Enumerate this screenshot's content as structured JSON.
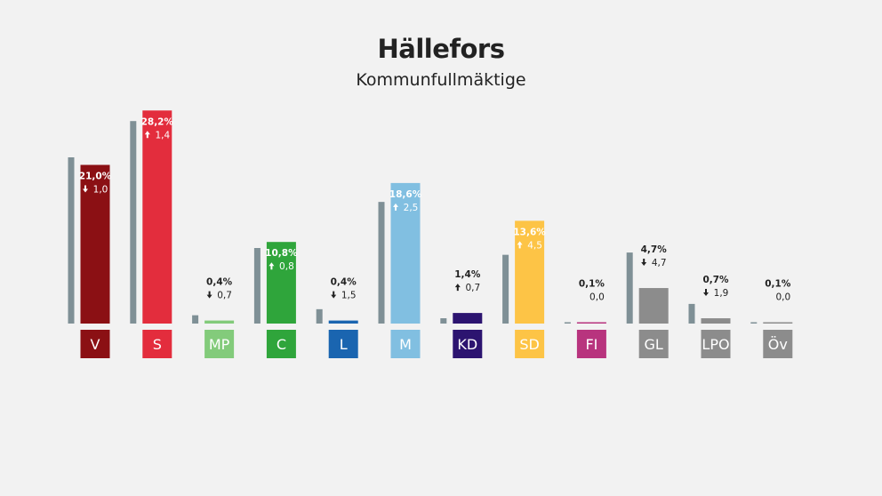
{
  "title": "Hällefors",
  "subtitle": "Kommunfullmäktige",
  "colors": {
    "previous_bar": "#7f9096",
    "label_inside": "#ffffff",
    "label_outside": "#222222"
  },
  "chart_data": {
    "type": "bar",
    "title": "Hällefors",
    "subtitle": "Kommunfullmäktige",
    "unit": "%",
    "ylim": [
      0,
      30
    ],
    "grid": false,
    "legend": "none",
    "categories": [
      "V",
      "S",
      "MP",
      "C",
      "L",
      "M",
      "KD",
      "SD",
      "FI",
      "GL",
      "LPO",
      "Öv"
    ],
    "series": [
      {
        "values": [
          21.0,
          28.2,
          0.4,
          10.8,
          0.4,
          18.6,
          1.4,
          13.6,
          0.1,
          4.7,
          0.7,
          0.1
        ]
      },
      {
        "values": [
          22.0,
          26.8,
          1.1,
          10.0,
          1.9,
          16.1,
          0.7,
          9.1,
          0.1,
          9.4,
          2.6,
          0.1
        ]
      }
    ],
    "bars": [
      {
        "party": "V",
        "value_label": "21,0%",
        "change_label": "1,0",
        "direction": "down",
        "color": "#8b1014",
        "label_inside": true
      },
      {
        "party": "S",
        "value_label": "28,2%",
        "change_label": "1,4",
        "direction": "up",
        "color": "#e32d3d",
        "label_inside": true
      },
      {
        "party": "MP",
        "value_label": "0,4%",
        "change_label": "0,7",
        "direction": "down",
        "color": "#83cb7b",
        "label_inside": false
      },
      {
        "party": "C",
        "value_label": "10,8%",
        "change_label": "0,8",
        "direction": "up",
        "color": "#2fa53b",
        "label_inside": true
      },
      {
        "party": "L",
        "value_label": "0,4%",
        "change_label": "1,5",
        "direction": "down",
        "color": "#1a65b0",
        "label_inside": false
      },
      {
        "party": "M",
        "value_label": "18,6%",
        "change_label": "2,5",
        "direction": "up",
        "color": "#81bfe1",
        "label_inside": true
      },
      {
        "party": "KD",
        "value_label": "1,4%",
        "change_label": "0,7",
        "direction": "up",
        "color": "#2c1470",
        "label_inside": false
      },
      {
        "party": "SD",
        "value_label": "13,6%",
        "change_label": "4,5",
        "direction": "up",
        "color": "#fdc446",
        "label_inside": true
      },
      {
        "party": "FI",
        "value_label": "0,1%",
        "change_label": "0,0",
        "direction": "none",
        "color": "#b8347e",
        "label_inside": false
      },
      {
        "party": "GL",
        "value_label": "4,7%",
        "change_label": "4,7",
        "direction": "down",
        "color": "#8c8c8c",
        "label_inside": false
      },
      {
        "party": "LPO",
        "value_label": "0,7%",
        "change_label": "1,9",
        "direction": "down",
        "color": "#8c8c8c",
        "label_inside": false
      },
      {
        "party": "Öv",
        "value_label": "0,1%",
        "change_label": "0,0",
        "direction": "none",
        "color": "#8c8c8c",
        "label_inside": false
      }
    ]
  }
}
